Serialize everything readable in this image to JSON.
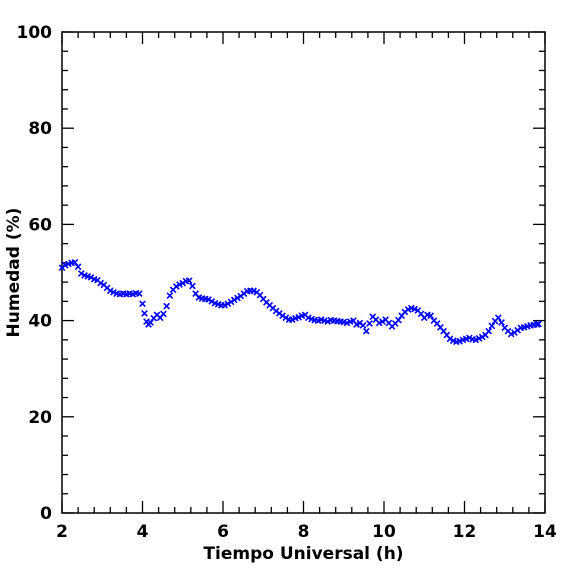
{
  "chart_data": {
    "type": "scatter",
    "title": "",
    "xlabel": "Tiempo Universal (h)",
    "ylabel": "Humedad (%)",
    "xlim": [
      2,
      14
    ],
    "ylim": [
      0,
      100
    ],
    "xticks": [
      2,
      4,
      6,
      8,
      10,
      12,
      14
    ],
    "yticks": [
      0,
      20,
      40,
      60,
      80,
      100
    ],
    "x_minor_step": 0.4,
    "y_minor_step": 4,
    "grid": false,
    "marker": "x",
    "color": "#0000ff",
    "series": [
      {
        "points": [
          [
            2.0,
            51.0
          ],
          [
            2.08,
            51.5
          ],
          [
            2.16,
            51.8
          ],
          [
            2.24,
            52.0
          ],
          [
            2.32,
            52.1
          ],
          [
            2.4,
            51.2
          ],
          [
            2.48,
            49.8
          ],
          [
            2.56,
            49.4
          ],
          [
            2.64,
            49.2
          ],
          [
            2.72,
            49.0
          ],
          [
            2.8,
            48.6
          ],
          [
            2.88,
            48.4
          ],
          [
            2.96,
            47.8
          ],
          [
            3.04,
            47.4
          ],
          [
            3.12,
            46.8
          ],
          [
            3.2,
            46.2
          ],
          [
            3.28,
            45.9
          ],
          [
            3.36,
            45.6
          ],
          [
            3.44,
            45.5
          ],
          [
            3.52,
            45.6
          ],
          [
            3.6,
            45.5
          ],
          [
            3.68,
            45.6
          ],
          [
            3.76,
            45.5
          ],
          [
            3.84,
            45.7
          ],
          [
            3.92,
            45.6
          ],
          [
            4.0,
            43.5
          ],
          [
            4.05,
            41.5
          ],
          [
            4.1,
            39.8
          ],
          [
            4.15,
            39.2
          ],
          [
            4.2,
            39.6
          ],
          [
            4.28,
            40.5
          ],
          [
            4.36,
            41.2
          ],
          [
            4.44,
            40.6
          ],
          [
            4.52,
            41.4
          ],
          [
            4.6,
            43.0
          ],
          [
            4.68,
            45.2
          ],
          [
            4.76,
            46.4
          ],
          [
            4.84,
            47.1
          ],
          [
            4.92,
            47.5
          ],
          [
            5.0,
            47.8
          ],
          [
            5.08,
            48.2
          ],
          [
            5.16,
            48.3
          ],
          [
            5.24,
            47.2
          ],
          [
            5.32,
            45.6
          ],
          [
            5.4,
            44.8
          ],
          [
            5.48,
            44.6
          ],
          [
            5.56,
            44.5
          ],
          [
            5.64,
            44.4
          ],
          [
            5.72,
            44.0
          ],
          [
            5.8,
            43.6
          ],
          [
            5.88,
            43.4
          ],
          [
            5.96,
            43.2
          ],
          [
            6.04,
            43.2
          ],
          [
            6.12,
            43.5
          ],
          [
            6.2,
            43.9
          ],
          [
            6.28,
            44.3
          ],
          [
            6.36,
            44.7
          ],
          [
            6.44,
            45.1
          ],
          [
            6.52,
            45.6
          ],
          [
            6.6,
            46.1
          ],
          [
            6.68,
            46.2
          ],
          [
            6.76,
            46.2
          ],
          [
            6.84,
            45.9
          ],
          [
            6.92,
            45.3
          ],
          [
            7.0,
            44.5
          ],
          [
            7.08,
            43.8
          ],
          [
            7.16,
            43.2
          ],
          [
            7.24,
            42.6
          ],
          [
            7.32,
            42.0
          ],
          [
            7.4,
            41.5
          ],
          [
            7.48,
            41.0
          ],
          [
            7.56,
            40.6
          ],
          [
            7.64,
            40.2
          ],
          [
            7.72,
            40.2
          ],
          [
            7.8,
            40.5
          ],
          [
            7.88,
            40.7
          ],
          [
            7.96,
            41.0
          ],
          [
            8.04,
            41.2
          ],
          [
            8.12,
            40.6
          ],
          [
            8.2,
            40.3
          ],
          [
            8.28,
            40.1
          ],
          [
            8.36,
            40.0
          ],
          [
            8.44,
            40.2
          ],
          [
            8.52,
            40.0
          ],
          [
            8.6,
            39.8
          ],
          [
            8.68,
            40.1
          ],
          [
            8.76,
            40.0
          ],
          [
            8.84,
            39.9
          ],
          [
            8.92,
            39.8
          ],
          [
            9.0,
            39.7
          ],
          [
            9.08,
            39.5
          ],
          [
            9.16,
            39.8
          ],
          [
            9.24,
            40.0
          ],
          [
            9.32,
            39.2
          ],
          [
            9.4,
            39.5
          ],
          [
            9.48,
            39.0
          ],
          [
            9.56,
            37.8
          ],
          [
            9.64,
            39.4
          ],
          [
            9.72,
            40.8
          ],
          [
            9.8,
            40.2
          ],
          [
            9.88,
            39.5
          ],
          [
            9.96,
            39.8
          ],
          [
            10.04,
            40.2
          ],
          [
            10.12,
            39.5
          ],
          [
            10.2,
            38.8
          ],
          [
            10.28,
            39.4
          ],
          [
            10.36,
            40.1
          ],
          [
            10.44,
            41.0
          ],
          [
            10.52,
            41.8
          ],
          [
            10.6,
            42.3
          ],
          [
            10.68,
            42.6
          ],
          [
            10.76,
            42.4
          ],
          [
            10.84,
            42.1
          ],
          [
            10.92,
            41.4
          ],
          [
            11.0,
            40.6
          ],
          [
            11.08,
            41.2
          ],
          [
            11.16,
            41.0
          ],
          [
            11.24,
            40.0
          ],
          [
            11.32,
            39.4
          ],
          [
            11.4,
            38.6
          ],
          [
            11.48,
            37.8
          ],
          [
            11.56,
            37.0
          ],
          [
            11.64,
            36.2
          ],
          [
            11.72,
            35.8
          ],
          [
            11.8,
            35.6
          ],
          [
            11.88,
            35.7
          ],
          [
            11.96,
            36.0
          ],
          [
            12.04,
            36.2
          ],
          [
            12.12,
            36.4
          ],
          [
            12.2,
            36.1
          ],
          [
            12.28,
            36.0
          ],
          [
            12.36,
            36.3
          ],
          [
            12.44,
            36.6
          ],
          [
            12.52,
            37.0
          ],
          [
            12.6,
            37.8
          ],
          [
            12.68,
            38.9
          ],
          [
            12.76,
            39.9
          ],
          [
            12.84,
            40.6
          ],
          [
            12.92,
            39.6
          ],
          [
            13.0,
            38.5
          ],
          [
            13.08,
            37.8
          ],
          [
            13.16,
            37.2
          ],
          [
            13.24,
            37.5
          ],
          [
            13.32,
            38.0
          ],
          [
            13.4,
            38.5
          ],
          [
            13.48,
            38.6
          ],
          [
            13.56,
            38.8
          ],
          [
            13.64,
            39.0
          ],
          [
            13.72,
            39.1
          ],
          [
            13.8,
            39.2
          ],
          [
            13.84,
            39.3
          ]
        ]
      }
    ]
  }
}
